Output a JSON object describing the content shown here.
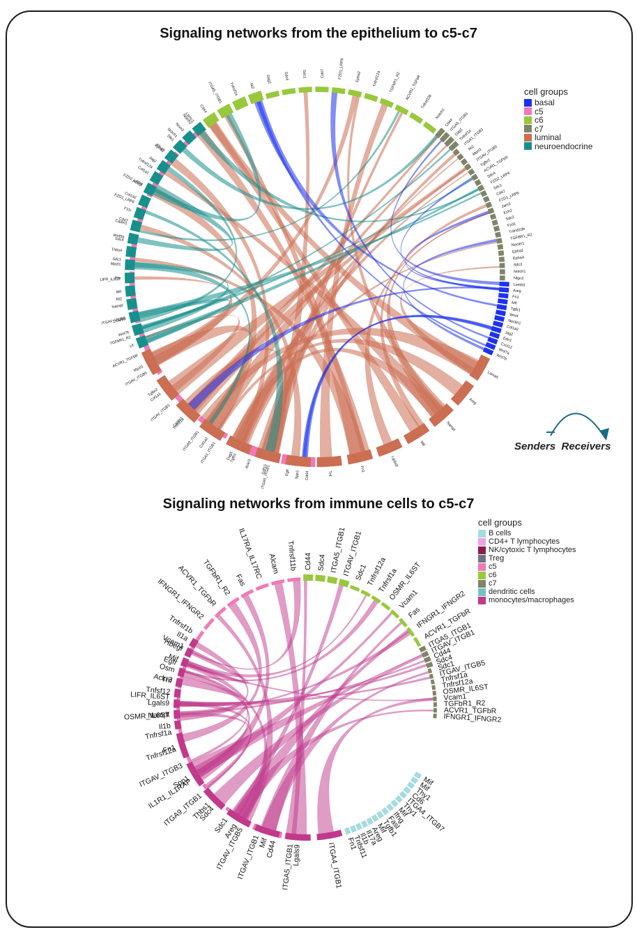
{
  "diagrams": [
    {
      "title": "Signaling networks from the epithelium to c5-c7",
      "legend_title": "cell groups",
      "groups": [
        {
          "name": "basal",
          "color": "#1c32ee"
        },
        {
          "name": "c5",
          "color": "#f278b6"
        },
        {
          "name": "c6",
          "color": "#98c83c"
        },
        {
          "name": "c7",
          "color": "#7f8468"
        },
        {
          "name": "luminal",
          "color": "#cb6e52"
        },
        {
          "name": "neuroendocrine",
          "color": "#17908c"
        }
      ],
      "sectors": [
        {
          "group": "c5",
          "start": 180,
          "end": 323,
          "labels": [
            "Cd44",
            "Egfr",
            "ITGA5_ITGB1",
            "Ackr3",
            "Dag1",
            "ITGA1_ITGB1",
            "ITGA9_ITGB1",
            "Tnfrsf1a",
            "ITGAV_ITGB1",
            "Tgfbr2",
            "ITGAV_ITGB5",
            "ACVR1_TGFbR",
            "TGFbR1_R2",
            "ITGAV_ITGB8",
            "Nt2",
            "LIFR_IL6ST",
            "Sdc1",
            "Sdc4",
            "Cd47",
            "FZD1_LRP6",
            "FZD2_LRP6",
            "Tnfrsf12a",
            "Epha2",
            "Notch1",
            "Notch2"
          ]
        },
        {
          "group": "c6",
          "start": 323,
          "end": 400,
          "labels": [
            "Cd44",
            "ITGA5_ITGB1",
            "Tnfrsf1a",
            "Nt2",
            "Dag1",
            "Sdc4",
            "Sdc1",
            "Cd47",
            "FZD1_LRP6",
            "Epha2",
            "Tnfrsf12a",
            "TGFbR1_R2",
            "ACVR1_TGFbR",
            "Tnfrsf10b",
            "Notch1"
          ]
        },
        {
          "group": "c7",
          "start": 400,
          "end": 452,
          "labels": [
            "Cd44",
            "ITGA5_ITGB1",
            "Dag1",
            "Tnfrsf1a",
            "ITGA1_ITGB1",
            "Nt2",
            "Mpzl1",
            "ITGAV_ITGB5",
            "Tgfbr2",
            "ACVR1_TGFbR",
            "Sdc4",
            "FZD2_LRP6",
            "Sdc1",
            "Cd47",
            "FZD1_LRP6",
            "Jam3",
            "Ezh2",
            "Sdc2",
            "Fzd1",
            "Tnfrsf10b",
            "TGFBR1_R2",
            "Nectin1",
            "Epha2",
            "Epha4",
            "Sdc3",
            "Notch1",
            "Nlgn2"
          ]
        },
        {
          "group": "basal",
          "start": 452,
          "end": 475,
          "labels": [
            "Lamb3",
            "Areg",
            "Fn1",
            "Mif",
            "Tgfb1",
            "Wnt4",
            "Nectin1",
            "Col1a2",
            "Jag2",
            "Edn1",
            "Cxcl12",
            "Wnt7a",
            "Wnt7b"
          ]
        },
        {
          "group": "luminal",
          "start": 475,
          "end": 607,
          "labels": [
            "Lama5",
            "Areg",
            "Nampt",
            "Mif",
            "Lgals9",
            "Fn1",
            "Tnf",
            "Spp1",
            "Gdf15",
            "Tgfb1",
            "Col1a2",
            "Cadm1",
            "Col1a1",
            "Mpzl1"
          ]
        },
        {
          "group": "neuroendocrine",
          "start": 607,
          "end": 683,
          "labels": [
            "Lif",
            "Wnt7b",
            "Tnfsf10",
            "Nampt",
            "Mif",
            "Ptn",
            "Mpzl1",
            "Thbs4",
            "Wnt5a",
            "Cadm1",
            "F11r",
            "Col1a2",
            "Hbegf",
            "Col1a1",
            "Jag2",
            "Efna5",
            "Dlk1",
            "Nrxn3",
            "Lamc1"
          ]
        }
      ],
      "links": [
        {
          "group": "luminal",
          "count": 34
        },
        {
          "group": "neuroendocrine",
          "count": 14
        },
        {
          "group": "basal",
          "count": 10
        }
      ]
    },
    {
      "title": "Signaling networks from immune cells to c5-c7",
      "legend_title": "cell groups",
      "groups": [
        {
          "name": "B cells",
          "color": "#a6dbe0"
        },
        {
          "name": "CD4+ T lymphocytes",
          "color": "#e9a6e2"
        },
        {
          "name": "NK/cytoxic T lymphocytes",
          "color": "#8b1d48"
        },
        {
          "name": "Treg",
          "color": "#6e7486"
        },
        {
          "name": "c5",
          "color": "#f278b6"
        },
        {
          "name": "c6",
          "color": "#98c83c"
        },
        {
          "name": "c7",
          "color": "#7f8468"
        },
        {
          "name": "dendritic cells",
          "color": "#73c3c3"
        },
        {
          "name": "monocytes/macrophages",
          "color": "#c0398b"
        }
      ],
      "sectors": [
        {
          "group": "c5",
          "start": 183,
          "end": 358,
          "labels": [
            "ITGA5_ITGB1",
            "Cd44",
            "ITGAV_ITGB1",
            "ITGAV_ITGB5",
            "Sdc1",
            "Sdc4",
            "ITGA9_ITGB1",
            "IL1R1_IL1RAP",
            "ITGAV_ITGB3",
            "Tnfrsf12a",
            "Tnfrsf1a",
            "OSMR_IL6ST",
            "LIFR_IL6ST",
            "Ackr3",
            "Egfr",
            "Vcam1",
            "Tnfrsf1b",
            "IFNGR1_IFNGR2",
            "ACVR1_TGFbR",
            "TGFbR1_R2",
            "Fas",
            "IL17RA_IL17RC",
            "Alcam",
            "Tnfrsf11b"
          ]
        },
        {
          "group": "c6",
          "start": 358,
          "end": 422,
          "labels": [
            "Cd44",
            "Sdc4",
            "ITGA5_ITGB1",
            "ITGAV_ITGB1",
            "Sdc1",
            "Tnfrsf12a",
            "Tnfrsf1a",
            "OSMR_IL6ST",
            "Vcam1",
            "Fas",
            "IFNGR1_IFNGR2",
            "ACVR1_TGFbR"
          ]
        },
        {
          "group": "c7",
          "start": 422,
          "end": 455,
          "labels": [
            "ITGA5_ITGB1",
            "ITGAV_ITGB1",
            "Cd44",
            "Sdc4",
            "Sdc1",
            "ITGAV_ITGB5",
            "Tnfrsf1a",
            "Tnfrsf12a",
            "OSMR_IL6ST",
            "Vcam1",
            "TGFbR1_R2",
            "ACVR1_TGFbR",
            "IFNGR1_IFNGR2"
          ]
        },
        {
          "group": "B cells",
          "start": 480,
          "end": 523,
          "labels": [
            "Mif",
            "Mif",
            "Thy1",
            "Cd6",
            "ITGA4_ITGB7",
            "Thy1",
            "Mif",
            "Ifng",
            "Fasl",
            "Tgfb1",
            "Mif",
            "Areg",
            "Il17a",
            "Il1b",
            "Tnfsf11",
            "Fn1"
          ]
        },
        {
          "group": "monocytes/macrophages",
          "start": 523,
          "end": 620,
          "labels": [
            "ITGA4_ITGB1",
            "Lgals9",
            "Mif",
            "Areg",
            "Thbs1",
            "Spp1",
            "Fn1"
          ]
        },
        {
          "group": "monocytes/macrophages",
          "start": 620,
          "end": 662,
          "labels": [
            "Il1b",
            "Nampt",
            "Lgals9",
            "Tnfsf12",
            "Tnf",
            "Osm",
            "Mif",
            "Hbegf",
            "Il1a"
          ]
        }
      ],
      "links": [
        {
          "group": "monocytes/macrophages",
          "count": 30
        },
        {
          "group": "dendritic cells",
          "count": 8
        }
      ]
    }
  ],
  "flow_legend": {
    "senders": "Senders",
    "receivers": "Receivers"
  }
}
